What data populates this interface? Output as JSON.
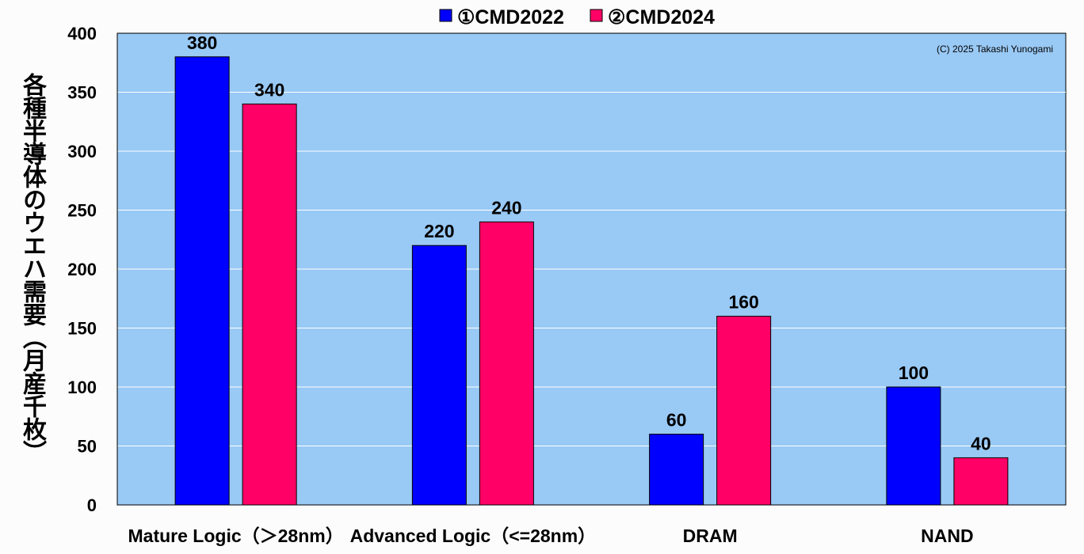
{
  "chart_data": {
    "type": "bar",
    "categories": [
      "Mature Logic（＞28nm）",
      "Advanced Logic（<=28nm）",
      "DRAM",
      "NAND"
    ],
    "series": [
      {
        "name": "①CMD2022",
        "color": "#0000ff",
        "values": [
          380,
          220,
          60,
          100
        ]
      },
      {
        "name": "②CMD2024",
        "color": "#ff0066",
        "values": [
          340,
          240,
          160,
          40
        ]
      }
    ],
    "title": "",
    "xlabel": "",
    "ylabel": "各種半導体のウエハ需要（月産千枚）",
    "ylim": [
      0,
      400
    ],
    "yticks": [
      0,
      50,
      100,
      150,
      200,
      250,
      300,
      350,
      400
    ],
    "grid": true,
    "legend": "top",
    "plot_background": "#99c9f5",
    "annotation": "(C) 2025 Takashi Yunogami"
  }
}
